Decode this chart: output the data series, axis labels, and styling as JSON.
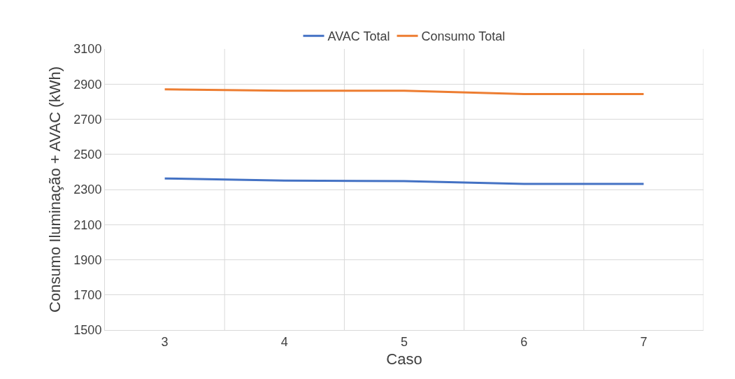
{
  "chart_data": {
    "type": "line",
    "xlabel": "Caso",
    "ylabel": "Consumo Iluminação + AVAC (kWh)",
    "categories": [
      "3",
      "4",
      "5",
      "6",
      "7"
    ],
    "series": [
      {
        "name": "AVAC Total",
        "color": "#4472c4",
        "values": [
          2363,
          2351,
          2348,
          2332,
          2332
        ]
      },
      {
        "name": "Consumo Total",
        "color": "#ed7d31",
        "values": [
          2870,
          2862,
          2862,
          2843,
          2843
        ]
      }
    ],
    "ylim": [
      1500,
      3100
    ],
    "yticks": [
      1500,
      1700,
      1900,
      2100,
      2300,
      2500,
      2700,
      2900,
      3100
    ],
    "grid": true,
    "legend": "top",
    "marker": "none",
    "line_style": "solid"
  }
}
